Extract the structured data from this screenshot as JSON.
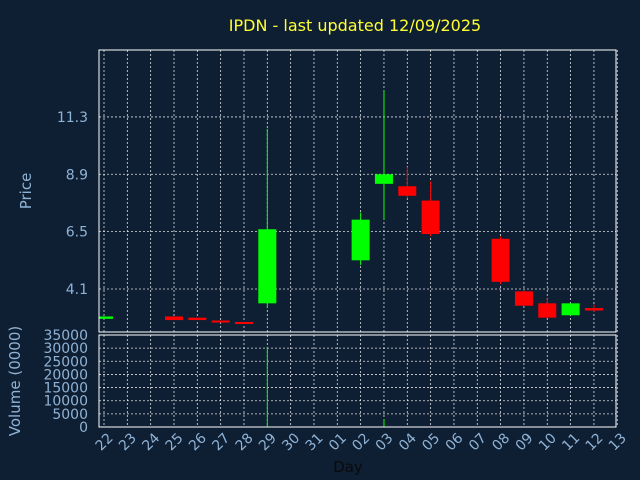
{
  "chart_data": {
    "type": "candlestick",
    "title": "IPDN - last updated 12/09/2025",
    "xlabel": "Day",
    "price_panel": {
      "ylabel": "Price",
      "ylim": [
        2.3,
        14.1
      ],
      "yticks": [
        "4.1",
        "6.5",
        "8.9",
        "11.3"
      ]
    },
    "volume_panel": {
      "ylabel": "Volume (0000)",
      "ylim": [
        0,
        35000
      ],
      "yticks": [
        "0",
        "5000",
        "10000",
        "15000",
        "20000",
        "25000",
        "30000",
        "35000"
      ]
    },
    "x_tick_labels": [
      "22",
      "23",
      "24",
      "25",
      "26",
      "27",
      "28",
      "29",
      "30",
      "31",
      "01",
      "02",
      "03",
      "04",
      "05",
      "06",
      "07",
      "08",
      "09",
      "10",
      "11",
      "12",
      "13"
    ],
    "candles": [
      {
        "day": "22",
        "open": 2.85,
        "close": 2.95,
        "high": 2.95,
        "low": 2.85,
        "volume": 60
      },
      {
        "day": "25",
        "open": 2.95,
        "close": 2.8,
        "high": 2.95,
        "low": 2.8,
        "volume": 50
      },
      {
        "day": "26",
        "open": 2.9,
        "close": 2.8,
        "high": 2.9,
        "low": 2.8,
        "volume": 50
      },
      {
        "day": "27",
        "open": 2.78,
        "close": 2.7,
        "high": 2.78,
        "low": 2.7,
        "volume": 40
      },
      {
        "day": "28",
        "open": 2.72,
        "close": 2.68,
        "high": 2.72,
        "low": 2.68,
        "volume": 40
      },
      {
        "day": "29",
        "open": 3.5,
        "close": 6.6,
        "high": 10.8,
        "low": 3.3,
        "volume": 30500
      },
      {
        "day": "02",
        "open": 5.3,
        "close": 7.0,
        "high": 7.3,
        "low": 5.1,
        "volume": 200
      },
      {
        "day": "03",
        "open": 8.5,
        "close": 8.9,
        "high": 12.4,
        "low": 7.0,
        "volume": 3000
      },
      {
        "day": "04",
        "open": 8.4,
        "close": 8.0,
        "high": 9.2,
        "low": 7.9,
        "volume": 300
      },
      {
        "day": "05",
        "open": 7.8,
        "close": 6.4,
        "high": 8.6,
        "low": 6.3,
        "volume": 250
      },
      {
        "day": "08",
        "open": 6.2,
        "close": 4.4,
        "high": 6.3,
        "low": 4.3,
        "volume": 150
      },
      {
        "day": "09",
        "open": 4.0,
        "close": 3.4,
        "high": 4.05,
        "low": 3.4,
        "volume": 120
      },
      {
        "day": "10",
        "open": 3.5,
        "close": 2.9,
        "high": 3.7,
        "low": 2.9,
        "volume": 100
      },
      {
        "day": "11",
        "open": 3.0,
        "close": 3.5,
        "high": 3.5,
        "low": 3.0,
        "volume": 80
      },
      {
        "day": "12",
        "open": 3.3,
        "close": 3.2,
        "high": 3.45,
        "low": 3.15,
        "volume": 60
      }
    ],
    "grid": true,
    "colors": {
      "background": "#0f1f33",
      "up": "#00ff00",
      "down": "#ff0000",
      "title": "#ffff33",
      "axis_text": "#8fb3d6",
      "grid": "#ffffff"
    }
  }
}
